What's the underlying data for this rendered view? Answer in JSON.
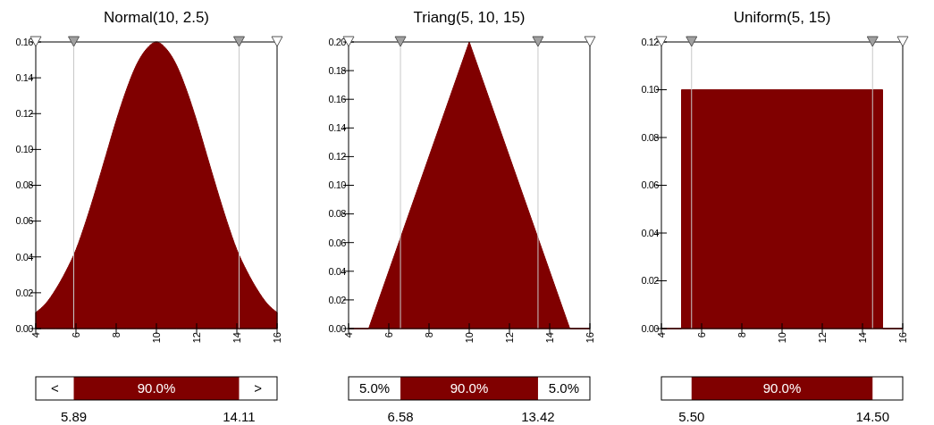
{
  "chart_data": [
    {
      "type": "area",
      "title": "Normal(10, 2.5)",
      "color": "#800000",
      "x": [
        4,
        4.5,
        5,
        5.5,
        6,
        6.5,
        7,
        7.5,
        8,
        8.5,
        9,
        9.5,
        10,
        10.5,
        11,
        11.5,
        12,
        12.5,
        13,
        13.5,
        14,
        14.5,
        15,
        15.5,
        16
      ],
      "values": [
        0.009,
        0.014,
        0.022,
        0.032,
        0.044,
        0.06,
        0.078,
        0.097,
        0.116,
        0.133,
        0.147,
        0.156,
        0.16,
        0.156,
        0.147,
        0.133,
        0.116,
        0.097,
        0.078,
        0.06,
        0.044,
        0.032,
        0.022,
        0.014,
        0.009
      ],
      "xlim": [
        4,
        16
      ],
      "xticks": [
        4,
        6,
        8,
        10,
        12,
        14,
        16
      ],
      "ylim": [
        0,
        0.16
      ],
      "yticks": [
        {
          "value": 0,
          "label": "0.00"
        },
        {
          "value": 0.02,
          "label": "0.02"
        },
        {
          "value": 0.04,
          "label": "0.04"
        },
        {
          "value": 0.06,
          "label": "0.06"
        },
        {
          "value": 0.08,
          "label": "0.08"
        },
        {
          "value": 0.1,
          "label": "0.10"
        },
        {
          "value": 0.12,
          "label": "0.12"
        },
        {
          "value": 0.14,
          "label": "0.14"
        },
        {
          "value": 0.16,
          "label": "0.16"
        }
      ],
      "ref_lines": [
        {
          "axis": "x",
          "value": 5.89,
          "color": "#c8c8c8"
        },
        {
          "axis": "x",
          "value": 14.11,
          "color": "#c8c8c8"
        }
      ]
    },
    {
      "type": "area",
      "title": "Triang(5, 10, 15)",
      "color": "#800000",
      "x": [
        4,
        5,
        10,
        15,
        16
      ],
      "values": [
        0,
        0,
        0.2,
        0,
        0
      ],
      "xlim": [
        4,
        16
      ],
      "xticks": [
        4,
        6,
        8,
        10,
        12,
        14,
        16
      ],
      "ylim": [
        0,
        0.2
      ],
      "yticks": [
        {
          "value": 0,
          "label": "0.00"
        },
        {
          "value": 0.02,
          "label": "0.02"
        },
        {
          "value": 0.04,
          "label": "0.04"
        },
        {
          "value": 0.06,
          "label": "0.06"
        },
        {
          "value": 0.08,
          "label": "0.08"
        },
        {
          "value": 0.1,
          "label": "0.10"
        },
        {
          "value": 0.12,
          "label": "0.12"
        },
        {
          "value": 0.14,
          "label": "0.14"
        },
        {
          "value": 0.16,
          "label": "0.16"
        },
        {
          "value": 0.18,
          "label": "0.18"
        },
        {
          "value": 0.2,
          "label": "0.20"
        }
      ],
      "ref_lines": [
        {
          "axis": "x",
          "value": 6.58,
          "color": "#c8c8c8"
        },
        {
          "axis": "x",
          "value": 13.42,
          "color": "#c8c8c8"
        }
      ]
    },
    {
      "type": "area",
      "title": "Uniform(5, 15)",
      "color": "#800000",
      "x": [
        4,
        5,
        5,
        15,
        15,
        16
      ],
      "values": [
        0,
        0,
        0.1,
        0.1,
        0,
        0
      ],
      "xlim": [
        4,
        16
      ],
      "xticks": [
        4,
        6,
        8,
        10,
        12,
        14,
        16
      ],
      "ylim": [
        0,
        0.12
      ],
      "yticks": [
        {
          "value": 0,
          "label": "0.00"
        },
        {
          "value": 0.02,
          "label": "0.02"
        },
        {
          "value": 0.04,
          "label": "0.04"
        },
        {
          "value": 0.06,
          "label": "0.06"
        },
        {
          "value": 0.08,
          "label": "0.08"
        },
        {
          "value": 0.1,
          "label": "0.10"
        },
        {
          "value": 0.12,
          "label": "0.12"
        }
      ],
      "ref_lines": [
        {
          "axis": "x",
          "value": 5.5,
          "color": "#c8c8c8"
        },
        {
          "axis": "x",
          "value": 14.5,
          "color": "#c8c8c8"
        }
      ]
    },
    {
      "type": "bar",
      "orientation": "horizontal",
      "categories": [
        null
      ],
      "xlim": [
        4,
        16
      ],
      "xticks": [
        5.89,
        14.11
      ],
      "tick_labels": "x",
      "color": "#800000",
      "base": [
        5.89
      ],
      "values": [
        8.22
      ],
      "annotations": [
        "<",
        "90.0%",
        ">"
      ]
    },
    {
      "type": "bar",
      "orientation": "horizontal",
      "categories": [
        null
      ],
      "xlim": [
        4,
        16
      ],
      "xticks": [
        6.58,
        13.42
      ],
      "tick_labels": "x",
      "color": "#800000",
      "base": [
        6.58
      ],
      "values": [
        6.84
      ],
      "annotations": [
        "5.0%",
        "90.0%",
        "5.0%"
      ]
    },
    {
      "type": "bar",
      "orientation": "horizontal",
      "categories": [
        null
      ],
      "xlim": [
        4,
        16
      ],
      "xticks": [
        {
          "value": 5.5,
          "label": "5.50"
        },
        {
          "value": 14.5,
          "label": "14.50"
        }
      ],
      "tick_labels": "x",
      "color": "#800000",
      "base": [
        5.5
      ],
      "values": [
        9
      ],
      "annotations": [
        "90.0%"
      ]
    }
  ]
}
